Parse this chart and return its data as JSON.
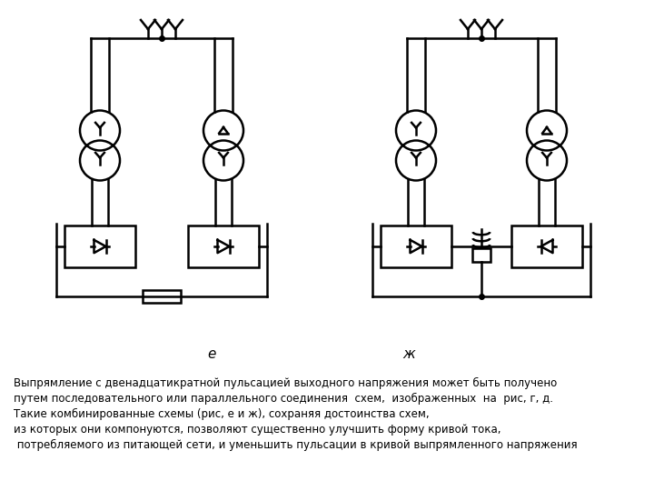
{
  "bg_color": "#ffffff",
  "line_color": "#000000",
  "line_width": 1.8,
  "fig_width": 7.2,
  "fig_height": 5.4,
  "label_e": "е",
  "label_zh": "ж",
  "text_lines": [
    "Выпрямление с двенадцатикратной пульсацией выходного напряжения может быть получено",
    "путем последовательного или параллельного соединения  схем,  изображенных  на  рис, г, д.",
    "Такие комбинированные схемы (рис, е и ж), сохраняя достоинства схем,",
    "из которых они компонуются, позволяют существенно улучшить форму кривой тока,",
    " потребляемого из питающей сети, и уменьшить пульсации в кривой выпрямленного напряжения"
  ],
  "font_size_text": 8.5,
  "font_size_label": 11
}
